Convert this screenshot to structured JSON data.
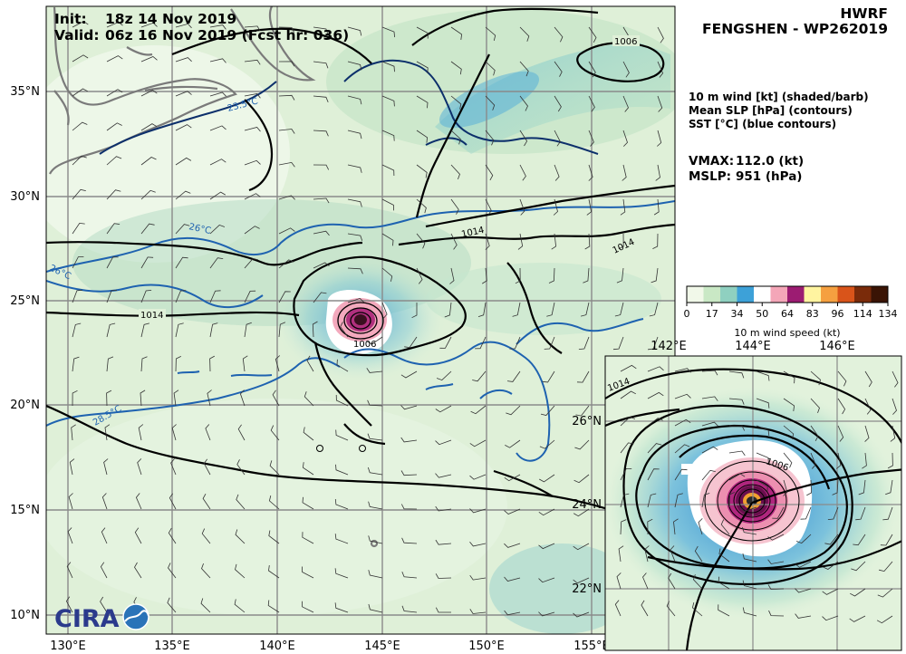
{
  "header": {
    "init_label": "Init:",
    "init_value": "18z 14 Nov 2019",
    "valid_label": "Valid:",
    "valid_value": "06z 16 Nov 2019 (Fcst hr: 036)",
    "model": "HWRF",
    "storm": "FENGSHEN - WP262019"
  },
  "legend": {
    "line1": "10 m wind [kt] (shaded/barb)",
    "line2": "Mean SLP [hPa] (contours)",
    "line3": "SST [°C] (blue contours)"
  },
  "stats": {
    "vmax_label": "VMAX:",
    "vmax_value": "112.0 (kt)",
    "mslp_label": "MSLP:",
    "mslp_value": "951 (hPa)"
  },
  "colorbar": {
    "ticks": [
      0,
      17,
      34,
      50,
      64,
      83,
      96,
      114,
      134
    ],
    "title": "10 m wind speed (kt)",
    "colors": [
      "#f1f8e9",
      "#c9e8c5",
      "#8fd0c0",
      "#3da1d8",
      "#ffffff",
      "#f4a6b8",
      "#9c1c72",
      "#fff4a0",
      "#f5a040",
      "#d9541a",
      "#7a2b0a",
      "#3a1405"
    ]
  },
  "main_map": {
    "lon_labels": [
      "130°E",
      "135°E",
      "140°E",
      "145°E",
      "150°E",
      "155°E"
    ],
    "lat_labels": [
      "35°N",
      "30°N",
      "25°N",
      "20°N",
      "15°N",
      "10°N"
    ],
    "slp_labels": [
      "1006",
      "1014",
      "1014",
      "1014",
      "1006"
    ],
    "sst_labels": [
      "23.5°C",
      "26°C",
      "26°C",
      "28.5°C"
    ]
  },
  "inset_map": {
    "lon_labels": [
      "142°E",
      "144°E",
      "146°E"
    ],
    "lat_labels": [
      "26°N",
      "24°N",
      "22°N"
    ],
    "slp_labels": [
      "1014",
      "1006"
    ]
  },
  "logo": {
    "text": "CIRA"
  }
}
